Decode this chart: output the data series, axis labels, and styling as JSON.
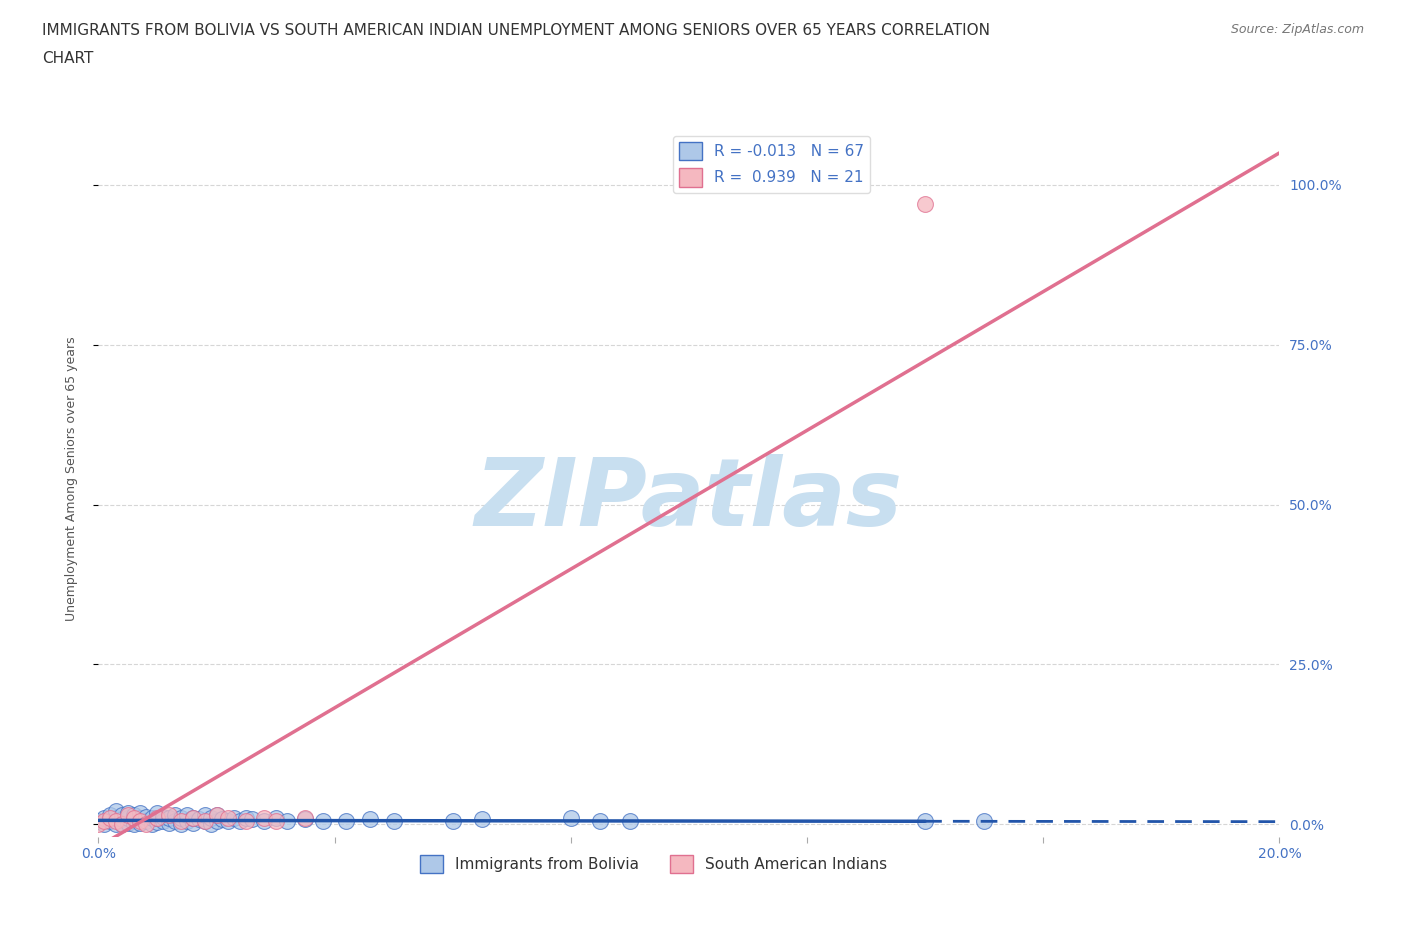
{
  "title_line1": "IMMIGRANTS FROM BOLIVIA VS SOUTH AMERICAN INDIAN UNEMPLOYMENT AMONG SENIORS OVER 65 YEARS CORRELATION",
  "title_line2": "CHART",
  "source": "Source: ZipAtlas.com",
  "ylabel": "Unemployment Among Seniors over 65 years",
  "xlim": [
    0.0,
    0.2
  ],
  "ylim": [
    -0.02,
    1.1
  ],
  "yticks": [
    0.0,
    0.25,
    0.5,
    0.75,
    1.0
  ],
  "yticklabels_right": [
    "0.0%",
    "25.0%",
    "50.0%",
    "75.0%",
    "100.0%"
  ],
  "xtick_positions": [
    0.0,
    0.04,
    0.08,
    0.12,
    0.16,
    0.2
  ],
  "xticklabels": [
    "0.0%",
    "",
    "",
    "",
    "",
    "20.0%"
  ],
  "watermark_text": "ZIPatlas",
  "watermark_color": "#c8dff0",
  "background_color": "#ffffff",
  "grid_color": "#cccccc",
  "bolivia_fill_color": "#aec8e8",
  "bolivia_edge_color": "#4472c4",
  "bolivia_line_color": "#2255aa",
  "sa_fill_color": "#f5b8c0",
  "sa_edge_color": "#e07090",
  "sa_line_color": "#e07090",
  "bolivia_R": -0.013,
  "bolivia_N": 67,
  "sa_R": 0.939,
  "sa_N": 21,
  "bolivia_x": [
    0.0,
    0.001,
    0.001,
    0.002,
    0.002,
    0.003,
    0.003,
    0.003,
    0.004,
    0.004,
    0.004,
    0.005,
    0.005,
    0.005,
    0.006,
    0.006,
    0.006,
    0.007,
    0.007,
    0.007,
    0.008,
    0.008,
    0.009,
    0.009,
    0.01,
    0.01,
    0.01,
    0.011,
    0.011,
    0.012,
    0.012,
    0.013,
    0.013,
    0.014,
    0.014,
    0.015,
    0.015,
    0.016,
    0.016,
    0.017,
    0.018,
    0.018,
    0.019,
    0.019,
    0.02,
    0.02,
    0.021,
    0.022,
    0.023,
    0.024,
    0.025,
    0.026,
    0.028,
    0.03,
    0.032,
    0.035,
    0.038,
    0.042,
    0.046,
    0.05,
    0.06,
    0.065,
    0.08,
    0.085,
    0.09,
    0.14,
    0.15
  ],
  "bolivia_y": [
    0.005,
    0.0,
    0.01,
    0.005,
    0.015,
    0.0,
    0.01,
    0.02,
    0.0,
    0.008,
    0.015,
    0.002,
    0.01,
    0.018,
    0.0,
    0.008,
    0.015,
    0.002,
    0.01,
    0.018,
    0.005,
    0.012,
    0.0,
    0.01,
    0.003,
    0.01,
    0.018,
    0.005,
    0.012,
    0.002,
    0.01,
    0.005,
    0.015,
    0.0,
    0.01,
    0.005,
    0.015,
    0.002,
    0.01,
    0.008,
    0.005,
    0.015,
    0.0,
    0.01,
    0.005,
    0.015,
    0.008,
    0.005,
    0.01,
    0.005,
    0.01,
    0.008,
    0.005,
    0.01,
    0.005,
    0.008,
    0.005,
    0.005,
    0.008,
    0.005,
    0.005,
    0.008,
    0.01,
    0.005,
    0.005,
    0.005,
    0.005
  ],
  "sa_x": [
    0.0,
    0.001,
    0.002,
    0.003,
    0.004,
    0.005,
    0.006,
    0.007,
    0.008,
    0.01,
    0.012,
    0.014,
    0.016,
    0.018,
    0.02,
    0.022,
    0.025,
    0.028,
    0.03,
    0.035,
    0.14
  ],
  "sa_y": [
    0.0,
    0.005,
    0.01,
    0.005,
    0.0,
    0.015,
    0.01,
    0.005,
    0.0,
    0.01,
    0.015,
    0.005,
    0.01,
    0.005,
    0.015,
    0.01,
    0.005,
    0.01,
    0.005,
    0.01,
    0.97
  ],
  "bolivia_trendline_x": [
    0.0,
    0.2
  ],
  "bolivia_trendline_y": [
    0.006,
    0.004
  ],
  "sa_trendline_x": [
    0.0,
    0.2
  ],
  "sa_trendline_y": [
    -0.035,
    1.05
  ],
  "title_fontsize": 11,
  "axis_label_fontsize": 9,
  "tick_fontsize": 10,
  "legend_fontsize": 11,
  "marker_size": 130,
  "marker_linewidth": 0.8
}
